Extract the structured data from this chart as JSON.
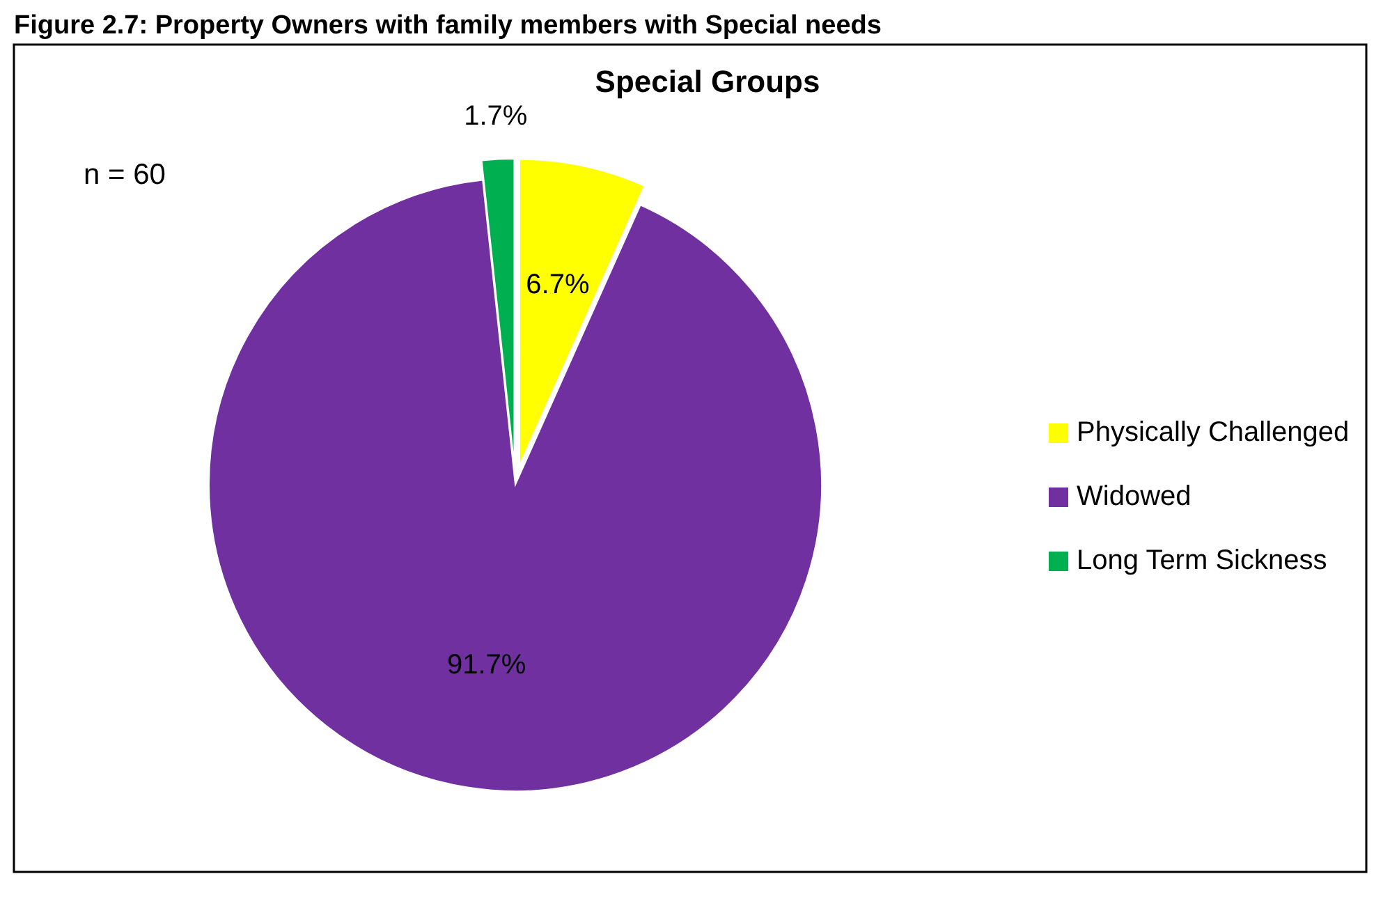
{
  "chart_data": {
    "type": "pie",
    "title": "Figure 2.7: Property Owners with family members with Special needs",
    "subtitle": "Special Groups",
    "annotations": [
      "n = 60"
    ],
    "categories": [
      "Physically Challenged",
      "Widowed",
      "Long Term Sickness"
    ],
    "values": [
      6.7,
      91.7,
      1.7
    ],
    "colors": [
      "#ffff00",
      "#7030a0",
      "#00b050"
    ],
    "value_labels": [
      "6.7%",
      "91.7%",
      "1.7%"
    ],
    "legend": "right"
  }
}
